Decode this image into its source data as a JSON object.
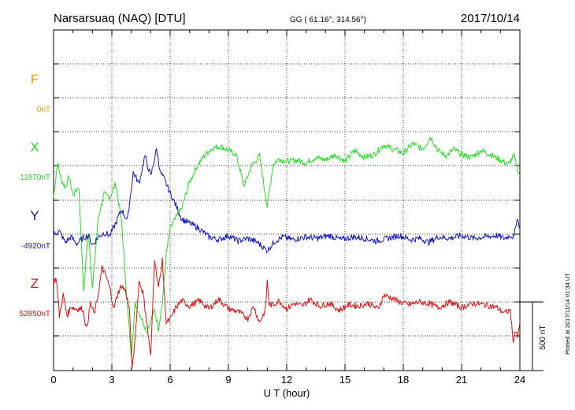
{
  "header": {
    "station": "Narsarsuaq (NAQ)  [DTU]",
    "coords": "GG ( 61.16°, 314.56°)",
    "date": "2017/10/14"
  },
  "plotted_note": "Plotted at 2017/11/14 01:34 UT",
  "colors": {
    "F": "#f0a000",
    "X": "#22dd22",
    "Y": "#1515cc",
    "Z": "#e01010",
    "grid": "#000000"
  },
  "chart_data": {
    "type": "line",
    "title": "Narsarsuaq (NAQ)  [DTU]",
    "xlabel": "U T (hour)",
    "xlim": [
      0,
      24
    ],
    "x_ticks": [
      "0",
      "3",
      "6",
      "9",
      "12",
      "15",
      "18",
      "21",
      "24"
    ],
    "scale_bar": {
      "label": "500 nT",
      "value_nT": 500
    },
    "grid": true,
    "series": [
      {
        "name": "F",
        "baseline_label": "0nT",
        "color": "#f0a000",
        "x": [],
        "y": []
      },
      {
        "name": "X",
        "baseline_label": "11970nT",
        "color": "#22dd22",
        "x": [
          0,
          0.2,
          0.4,
          0.6,
          0.8,
          1.0,
          1.3,
          1.55,
          1.7,
          1.8,
          2.0,
          2.3,
          2.6,
          2.9,
          3.2,
          3.5,
          3.8,
          4.0,
          4.2,
          4.5,
          4.8,
          5.2,
          5.4,
          5.6,
          5.8,
          6.0,
          6.3,
          6.6,
          7.0,
          7.4,
          7.8,
          8.2,
          8.6,
          9.0,
          9.4,
          9.8,
          10.2,
          10.6,
          11.0,
          11.3,
          11.6,
          12.0,
          12.5,
          13.0,
          13.5,
          14.0,
          14.5,
          15.0,
          15.5,
          16.0,
          16.5,
          17.0,
          17.5,
          18.0,
          18.5,
          19.0,
          19.4,
          19.8,
          20.2,
          20.6,
          21.0,
          21.5,
          22.0,
          22.5,
          23.0,
          23.4,
          23.7,
          24.0
        ],
        "y": [
          -230,
          20,
          -100,
          -160,
          -80,
          -220,
          -150,
          -930,
          -620,
          -480,
          -900,
          -380,
          -210,
          -230,
          -130,
          -410,
          -1020,
          -1390,
          -1010,
          -1100,
          -1210,
          -1050,
          -1190,
          -1000,
          -650,
          -460,
          -380,
          -310,
          -120,
          0,
          80,
          130,
          140,
          110,
          80,
          -150,
          0,
          70,
          -300,
          10,
          50,
          30,
          40,
          20,
          60,
          40,
          80,
          30,
          110,
          60,
          80,
          150,
          120,
          90,
          160,
          120,
          210,
          110,
          70,
          120,
          80,
          60,
          110,
          80,
          40,
          10,
          70,
          -80
        ]
      },
      {
        "name": "Y",
        "baseline_label": "-4920nT",
        "color": "#1515cc",
        "x": [
          0,
          0.3,
          0.6,
          0.9,
          1.2,
          1.5,
          1.8,
          2.0,
          2.3,
          2.6,
          2.9,
          3.2,
          3.5,
          3.8,
          4.1,
          4.4,
          4.7,
          5.0,
          5.3,
          5.5,
          5.7,
          6.0,
          6.3,
          6.6,
          7.0,
          7.5,
          8.0,
          8.5,
          9.0,
          9.5,
          10.0,
          10.5,
          11.0,
          11.4,
          11.8,
          12.3,
          13.0,
          13.6,
          14.2,
          14.8,
          15.4,
          16.0,
          16.6,
          17.2,
          17.8,
          18.4,
          18.9,
          19.3,
          19.8,
          20.4,
          21.0,
          21.6,
          22.2,
          22.8,
          23.2,
          23.5,
          23.7,
          23.85,
          24.0
        ],
        "y": [
          0,
          20,
          -60,
          -20,
          -70,
          -30,
          -10,
          -80,
          -20,
          10,
          -10,
          80,
          180,
          100,
          450,
          370,
          570,
          420,
          620,
          450,
          400,
          300,
          210,
          110,
          80,
          40,
          -20,
          -40,
          -10,
          -50,
          -30,
          -60,
          -120,
          -50,
          -20,
          -40,
          -20,
          -30,
          -10,
          -40,
          -20,
          -30,
          -50,
          -30,
          -10,
          -40,
          -30,
          -60,
          -20,
          -30,
          -10,
          -30,
          -20,
          -10,
          -30,
          -10,
          -20,
          120,
          50
        ]
      },
      {
        "name": "Z",
        "baseline_label": "52850nT",
        "color": "#e01010",
        "x": [
          0,
          0.15,
          0.3,
          0.5,
          0.7,
          0.9,
          1.1,
          1.3,
          1.5,
          1.7,
          1.9,
          2.1,
          2.3,
          2.5,
          2.7,
          2.9,
          3.1,
          3.3,
          3.5,
          3.7,
          3.9,
          4.05,
          4.2,
          4.4,
          4.6,
          4.8,
          5.0,
          5.2,
          5.4,
          5.6,
          5.8,
          6.0,
          6.3,
          6.6,
          7.0,
          7.5,
          8.0,
          8.5,
          9.0,
          9.5,
          10.0,
          10.3,
          10.6,
          10.9,
          11.0,
          11.1,
          11.3,
          11.6,
          12.0,
          12.4,
          12.8,
          13.2,
          13.7,
          14.2,
          14.7,
          15.2,
          15.7,
          16.2,
          16.7,
          17.0,
          17.4,
          17.8,
          18.3,
          18.8,
          19.3,
          19.8,
          20.4,
          21.0,
          21.6,
          22.2,
          22.8,
          23.2,
          23.5,
          23.65,
          23.8,
          23.9,
          24.0
        ],
        "y": [
          150,
          170,
          -100,
          50,
          -100,
          -30,
          -50,
          -50,
          -50,
          -200,
          -10,
          -90,
          60,
          250,
          190,
          100,
          -50,
          60,
          120,
          80,
          -50,
          -500,
          -250,
          150,
          70,
          -150,
          -400,
          320,
          100,
          300,
          -150,
          -130,
          -40,
          10,
          -30,
          10,
          -50,
          20,
          -50,
          -70,
          -120,
          -30,
          -150,
          -60,
          150,
          -20,
          -20,
          10,
          -50,
          -10,
          -30,
          20,
          -30,
          -10,
          -60,
          -20,
          -30,
          -10,
          -50,
          50,
          30,
          0,
          -20,
          0,
          -10,
          -40,
          0,
          -40,
          -10,
          -20,
          -40,
          -80,
          -60,
          -280,
          -200,
          -260,
          -140
        ]
      }
    ]
  }
}
